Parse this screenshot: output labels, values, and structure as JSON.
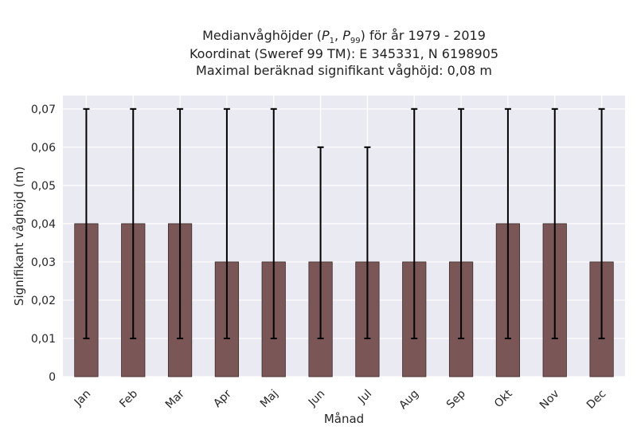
{
  "chart_data": {
    "type": "bar",
    "title": "Medianvåghöjder (P1, P99) för år 1979 - 2019",
    "title_parts": {
      "prefix": "Medianvåghöjder (",
      "p1_symbol": "P",
      "p1_sub": "1",
      "separator": ", ",
      "p99_symbol": "P",
      "p99_sub": "99",
      "suffix": ") för år 1979 - 2019"
    },
    "subtitle_lines": [
      "Koordinat (Sweref 99 TM): E 345331, N 6198905",
      "Maximal beräknad signifikant våghöjd: 0,08 m"
    ],
    "xlabel": "Månad",
    "ylabel": "Signifikant våghöjd (m)",
    "categories": [
      "Jan",
      "Feb",
      "Mar",
      "Apr",
      "Maj",
      "Jun",
      "Jul",
      "Aug",
      "Sep",
      "Okt",
      "Nov",
      "Dec"
    ],
    "values": [
      0.04,
      0.04,
      0.04,
      0.03,
      0.03,
      0.03,
      0.03,
      0.03,
      0.03,
      0.04,
      0.04,
      0.03
    ],
    "error_low": [
      0.01,
      0.01,
      0.01,
      0.01,
      0.01,
      0.01,
      0.01,
      0.01,
      0.01,
      0.01,
      0.01,
      0.01
    ],
    "error_high": [
      0.07,
      0.07,
      0.07,
      0.07,
      0.07,
      0.06,
      0.06,
      0.07,
      0.07,
      0.07,
      0.07,
      0.07
    ],
    "ylim": [
      0,
      0.0735
    ],
    "yticks": [
      0,
      0.01,
      0.02,
      0.03,
      0.04,
      0.05,
      0.06,
      0.07
    ],
    "ytick_labels": [
      "0",
      "0,01",
      "0,02",
      "0,03",
      "0,04",
      "0,05",
      "0,06",
      "0,07"
    ],
    "grid": true,
    "colors": {
      "bar_fill": "#7a5656",
      "bar_edge": "#3b2a2a",
      "error_bar": "#000000",
      "plot_background": "#eaeaf2",
      "grid": "#ffffff",
      "text": "#262626"
    }
  }
}
